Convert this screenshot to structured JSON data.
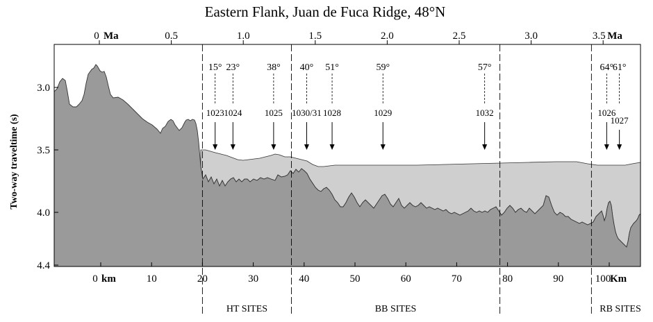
{
  "title": "Eastern Flank, Juan de Fuca Ridge, 48°N",
  "age_axis": {
    "unit_label": "Ma",
    "ticks": [
      "0",
      "0.5",
      "1.0",
      "1.5",
      "2.0",
      "2.5",
      "3.0",
      "3.5"
    ],
    "values": [
      0,
      0.5,
      1.0,
      1.5,
      2.0,
      2.5,
      3.0,
      3.5
    ]
  },
  "distance_axis": {
    "unit_label": "Km",
    "zero_unit_label": "km",
    "ticks": [
      "0",
      "10",
      "20",
      "30",
      "40",
      "50",
      "60",
      "70",
      "80",
      "90",
      "100"
    ],
    "values": [
      0,
      10,
      20,
      30,
      40,
      50,
      60,
      70,
      80,
      90,
      100
    ]
  },
  "y_axis": {
    "label": "Two-way traveltime (s)",
    "ticks": [
      "3.0",
      "3.5",
      "4.0",
      "4.4"
    ],
    "values": [
      3.0,
      3.5,
      4.0,
      4.4
    ],
    "range": [
      2.7,
      4.43
    ],
    "inverted": true
  },
  "zones": [
    {
      "label": "HT SITES",
      "start_km": 20,
      "end_km": 37.5
    },
    {
      "label": "BB SITES",
      "start_km": 37.5,
      "end_km": 78.5
    },
    {
      "label": "RB SITES",
      "start_km": 96.5,
      "end_km": 105
    }
  ],
  "sites": [
    {
      "id": "1023",
      "temp": "15°",
      "km": 22.5
    },
    {
      "id": "1024",
      "temp": "23°",
      "km": 26.0
    },
    {
      "id": "1025",
      "temp": "38°",
      "km": 34.0
    },
    {
      "id": "1030/31",
      "temp": "40°",
      "km": 40.5
    },
    {
      "id": "1028",
      "temp": "51°",
      "km": 45.5
    },
    {
      "id": "1029",
      "temp": "59°",
      "km": 55.5
    },
    {
      "id": "1032",
      "temp": "57°",
      "km": 75.5
    },
    {
      "id": "1026",
      "temp": "64°",
      "km": 99.5
    },
    {
      "id": "1027",
      "temp": "61°",
      "km": 102.0
    }
  ],
  "colors": {
    "basement": "#9a9a9a",
    "sediment": "#cfcfcf",
    "outline": "#333333"
  }
}
